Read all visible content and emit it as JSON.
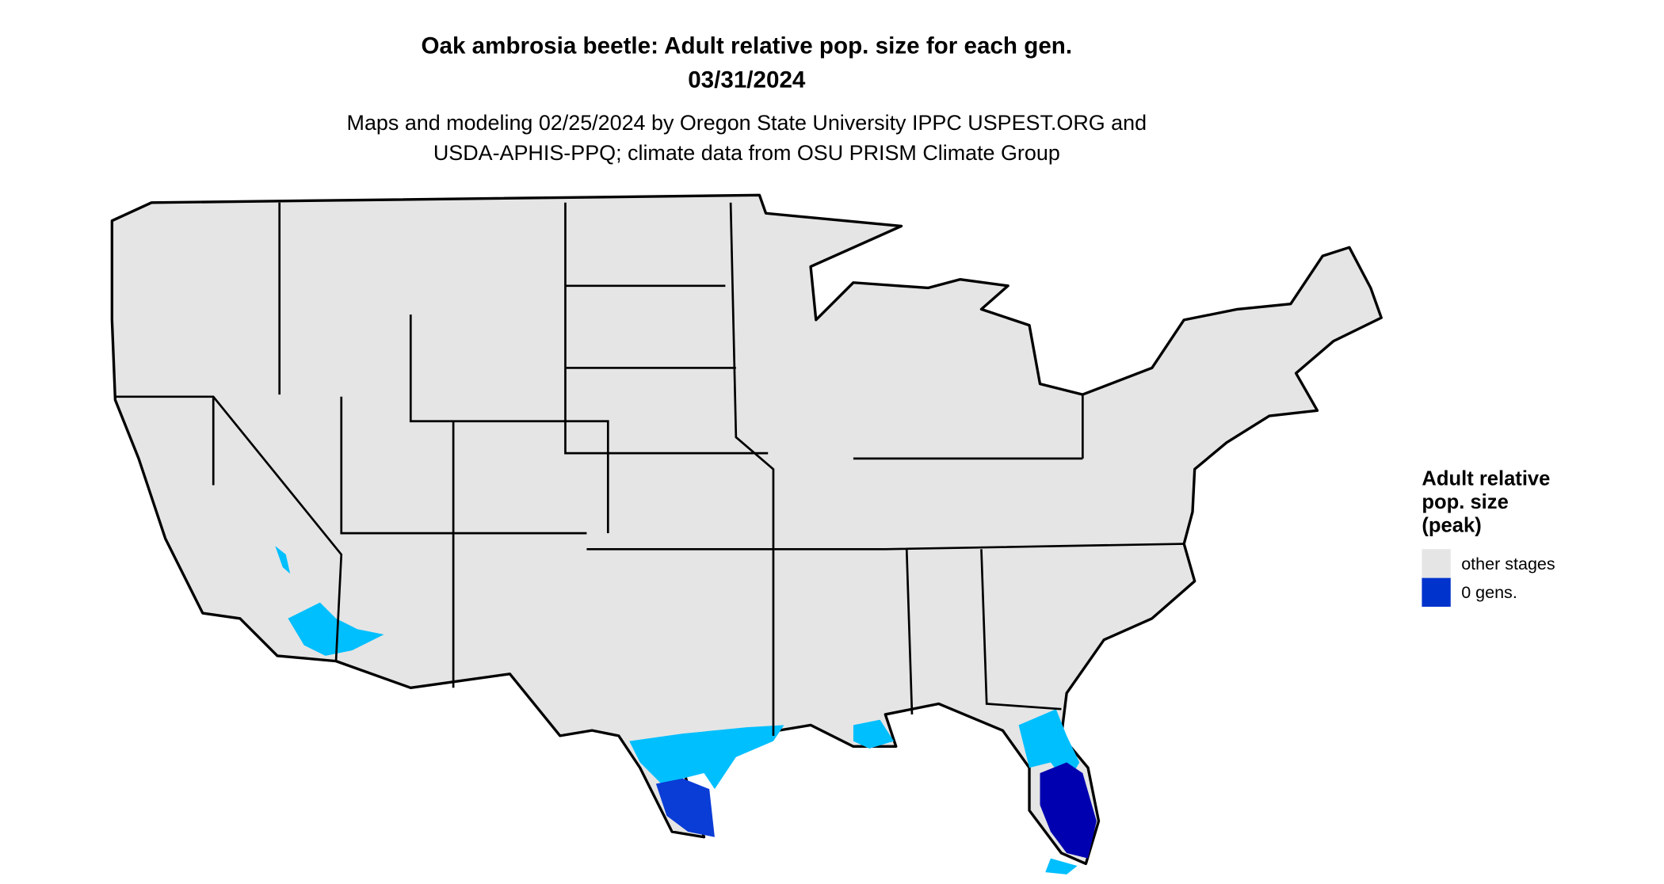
{
  "title": [
    "Oak ambrosia beetle: Adult relative pop. size for each gen.",
    "03/31/2024"
  ],
  "subtitle": [
    "Maps and modeling 02/25/2024 by Oregon State University IPPC USPEST.ORG and",
    "USDA-APHIS-PPQ; climate data from OSU PRISM Climate Group"
  ],
  "legend": {
    "title": [
      "Adult relative",
      "pop. size",
      "(peak)"
    ],
    "items": [
      {
        "label": "other stages",
        "color": "#e5e5e5"
      },
      {
        "label": "0 gens.",
        "color": "#0033cc"
      }
    ]
  }
}
